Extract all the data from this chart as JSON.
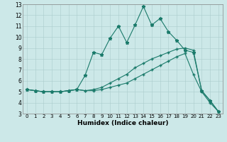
{
  "xlabel": "Humidex (Indice chaleur)",
  "background_color": "#cce8e8",
  "line_color": "#1a7a6a",
  "x": [
    0,
    1,
    2,
    3,
    4,
    5,
    6,
    7,
    8,
    9,
    10,
    11,
    12,
    13,
    14,
    15,
    16,
    17,
    18,
    19,
    20,
    21,
    22,
    23
  ],
  "line1": [
    5.2,
    5.1,
    5.0,
    5.0,
    5.0,
    5.1,
    5.2,
    6.5,
    8.6,
    8.4,
    9.9,
    11.0,
    9.5,
    11.1,
    12.8,
    11.1,
    11.7,
    10.5,
    9.7,
    8.8,
    8.6,
    5.1,
    4.2,
    3.2
  ],
  "line2": [
    5.2,
    5.1,
    5.0,
    5.0,
    5.0,
    5.1,
    5.2,
    5.1,
    5.1,
    5.2,
    5.4,
    5.6,
    5.8,
    6.2,
    6.6,
    7.0,
    7.4,
    7.8,
    8.2,
    8.5,
    6.6,
    5.0,
    4.0,
    3.2
  ],
  "line3": [
    5.2,
    5.1,
    5.0,
    5.0,
    5.0,
    5.1,
    5.2,
    5.1,
    5.2,
    5.4,
    5.8,
    6.2,
    6.6,
    7.2,
    7.6,
    8.0,
    8.3,
    8.6,
    8.9,
    9.0,
    8.8,
    5.1,
    4.2,
    3.2
  ],
  "ylim": [
    3,
    13
  ],
  "xlim": [
    -0.5,
    23.5
  ],
  "yticks": [
    3,
    4,
    5,
    6,
    7,
    8,
    9,
    10,
    11,
    12,
    13
  ],
  "xticks": [
    0,
    1,
    2,
    3,
    4,
    5,
    6,
    7,
    8,
    9,
    10,
    11,
    12,
    13,
    14,
    15,
    16,
    17,
    18,
    19,
    20,
    21,
    22,
    23
  ]
}
